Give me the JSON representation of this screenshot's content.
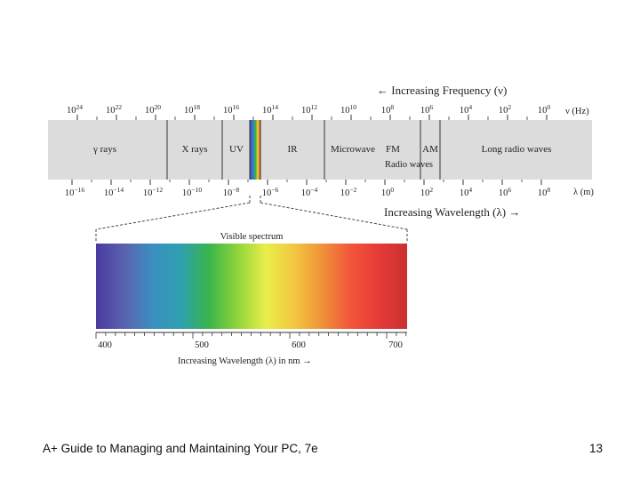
{
  "footer": {
    "course_title": "A+ Guide to Managing and Maintaining Your PC, 7e",
    "page_number": "13"
  },
  "spectrum": {
    "frequency_caption": "← Increasing Frequency (ν)",
    "frequency_unit": "ν (Hz)",
    "frequency_ticks": [
      {
        "base": "10",
        "exp": "24"
      },
      {
        "base": "10",
        "exp": "22"
      },
      {
        "base": "10",
        "exp": "20"
      },
      {
        "base": "10",
        "exp": "18"
      },
      {
        "base": "10",
        "exp": "16"
      },
      {
        "base": "10",
        "exp": "14"
      },
      {
        "base": "10",
        "exp": "12"
      },
      {
        "base": "10",
        "exp": "10"
      },
      {
        "base": "10",
        "exp": "8"
      },
      {
        "base": "10",
        "exp": "6"
      },
      {
        "base": "10",
        "exp": "4"
      },
      {
        "base": "10",
        "exp": "2"
      },
      {
        "base": "10",
        "exp": "0"
      }
    ],
    "bands": [
      {
        "label": "γ rays"
      },
      {
        "label": "X rays"
      },
      {
        "label": "UV"
      },
      {
        "label": "IR"
      },
      {
        "label": "Microwave"
      },
      {
        "label": "FM"
      },
      {
        "label": "AM"
      },
      {
        "label": "Long radio waves"
      }
    ],
    "radio_waves_label": "Radio waves",
    "wavelength_unit": "λ (m)",
    "wavelength_ticks": [
      {
        "base": "10",
        "exp": "−16"
      },
      {
        "base": "10",
        "exp": "−14"
      },
      {
        "base": "10",
        "exp": "−12"
      },
      {
        "base": "10",
        "exp": "−10"
      },
      {
        "base": "10",
        "exp": "−8"
      },
      {
        "base": "10",
        "exp": "−6"
      },
      {
        "base": "10",
        "exp": "−4"
      },
      {
        "base": "10",
        "exp": "−2"
      },
      {
        "base": "10",
        "exp": "0"
      },
      {
        "base": "10",
        "exp": "2"
      },
      {
        "base": "10",
        "exp": "4"
      },
      {
        "base": "10",
        "exp": "6"
      },
      {
        "base": "10",
        "exp": "8"
      }
    ],
    "wavelength_caption": "Increasing Wavelength (λ)  →"
  },
  "visible": {
    "title": "Visible spectrum",
    "nm_ticks": [
      "400",
      "500",
      "600",
      "700"
    ],
    "caption": "Increasing Wavelength (λ) in nm →",
    "gradient_colors": [
      "#4b3aa0",
      "#5a62b0",
      "#3b8fc0",
      "#2ea0b0",
      "#3ab54a",
      "#8fd43a",
      "#e8ee4a",
      "#f2c840",
      "#f0923a",
      "#f3553a",
      "#e53a38",
      "#c8312f"
    ]
  }
}
